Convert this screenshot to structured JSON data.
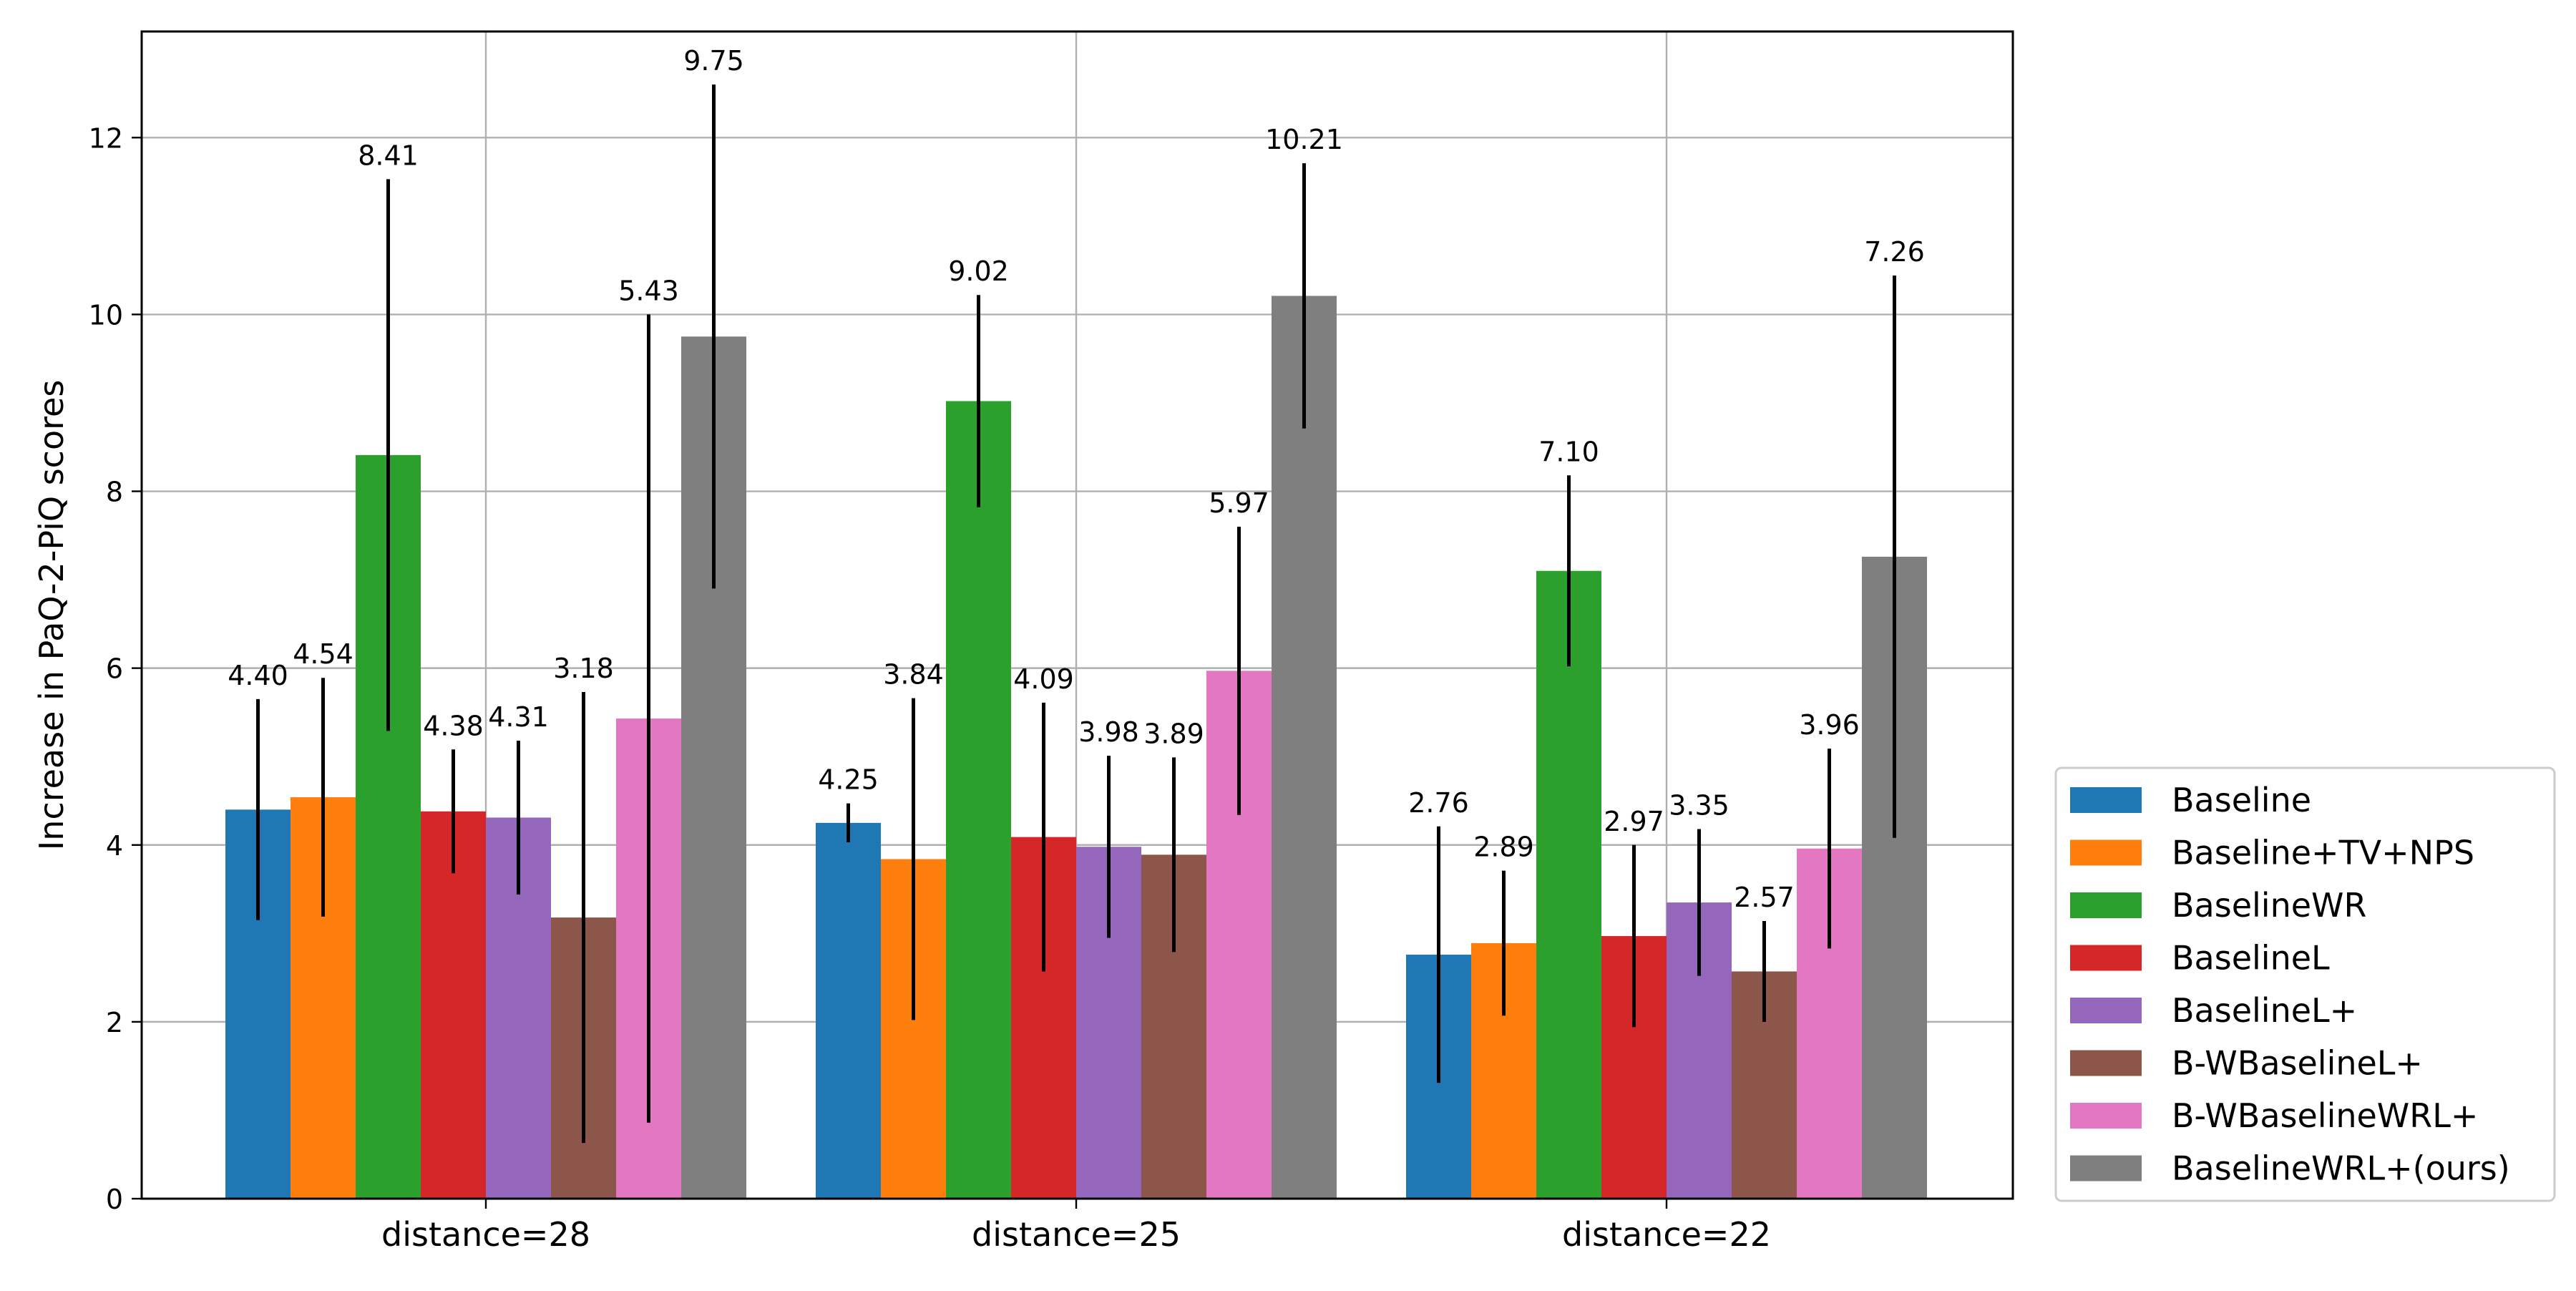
{
  "chart_data": {
    "type": "bar",
    "ylabel": "Increase in PaQ-2-PiQ scores",
    "xlabel": "",
    "ylim": [
      0,
      13.2
    ],
    "yticks": [
      0,
      2,
      4,
      6,
      8,
      10,
      12
    ],
    "grid": true,
    "legend_position": "bottom-right (outside plot)",
    "categories": [
      "distance=28",
      "distance=25",
      "distance=22"
    ],
    "series": [
      {
        "name": "Baseline",
        "color": "#1f77b4",
        "values": [
          4.4,
          4.25,
          2.76
        ],
        "labels": [
          "4.40",
          "4.25",
          "2.76"
        ],
        "errors": [
          1.25,
          0.22,
          1.45
        ]
      },
      {
        "name": "Baseline+TV+NPS",
        "color": "#ff7f0e",
        "values": [
          4.54,
          3.84,
          2.89
        ],
        "labels": [
          "4.54",
          "3.84",
          "2.89"
        ],
        "errors": [
          1.35,
          1.82,
          0.82
        ]
      },
      {
        "name": "BaselineWR",
        "color": "#2ca02c",
        "values": [
          8.41,
          9.02,
          7.1
        ],
        "labels": [
          "8.41",
          "9.02",
          "7.10"
        ],
        "errors": [
          3.12,
          1.2,
          1.08
        ]
      },
      {
        "name": "BaselineL",
        "color": "#d62728",
        "values": [
          4.38,
          4.09,
          2.97
        ],
        "labels": [
          "4.38",
          "4.09",
          "2.97"
        ],
        "errors": [
          0.7,
          1.52,
          1.03
        ]
      },
      {
        "name": "BaselineL+",
        "color": "#9467bd",
        "values": [
          4.31,
          3.98,
          3.35
        ],
        "labels": [
          "4.31",
          "3.98",
          "3.35"
        ],
        "errors": [
          0.87,
          1.03,
          0.83
        ]
      },
      {
        "name": "B-WBaselineL+",
        "color": "#8c564b",
        "values": [
          3.18,
          3.89,
          2.57
        ],
        "labels": [
          "3.18",
          "3.89",
          "2.57"
        ],
        "errors": [
          2.55,
          1.1,
          0.57
        ]
      },
      {
        "name": "B-WBaselineWRL+",
        "color": "#e377c2",
        "values": [
          5.43,
          5.97,
          3.96
        ],
        "labels": [
          "5.43",
          "5.97",
          "3.96"
        ],
        "errors": [
          4.57,
          1.63,
          1.13
        ]
      },
      {
        "name": "BaselineWRL+(ours)",
        "color": "#7f7f7f",
        "values": [
          9.75,
          10.21,
          7.26
        ],
        "labels": [
          "9.75",
          "10.21",
          "7.26"
        ],
        "errors": [
          2.85,
          1.5,
          3.18
        ]
      }
    ]
  }
}
